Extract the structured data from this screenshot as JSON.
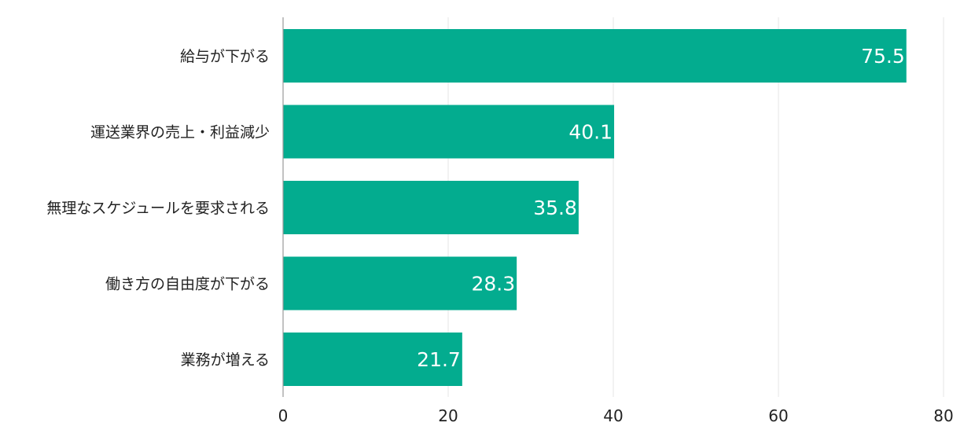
{
  "chart_data": {
    "type": "bar",
    "orientation": "horizontal",
    "categories": [
      "給与が下がる",
      "運送業界の売上・利益減少",
      "無理なスケジュールを要求される",
      "働き方の自由度が下がる",
      "業務が増える"
    ],
    "values": [
      75.5,
      40.1,
      35.8,
      28.3,
      21.7
    ],
    "xlim": [
      0,
      80
    ],
    "xticks": [
      0,
      20,
      40,
      60,
      80
    ],
    "tick_labels": [
      "0",
      "20",
      "40",
      "60",
      "80"
    ],
    "data_labels": [
      "75.5",
      "40.1",
      "35.8",
      "28.3",
      "21.7"
    ],
    "title": "",
    "xlabel": "",
    "ylabel": "",
    "grid": "vertical",
    "legend": "none",
    "bar_color": "#03AC8F"
  }
}
